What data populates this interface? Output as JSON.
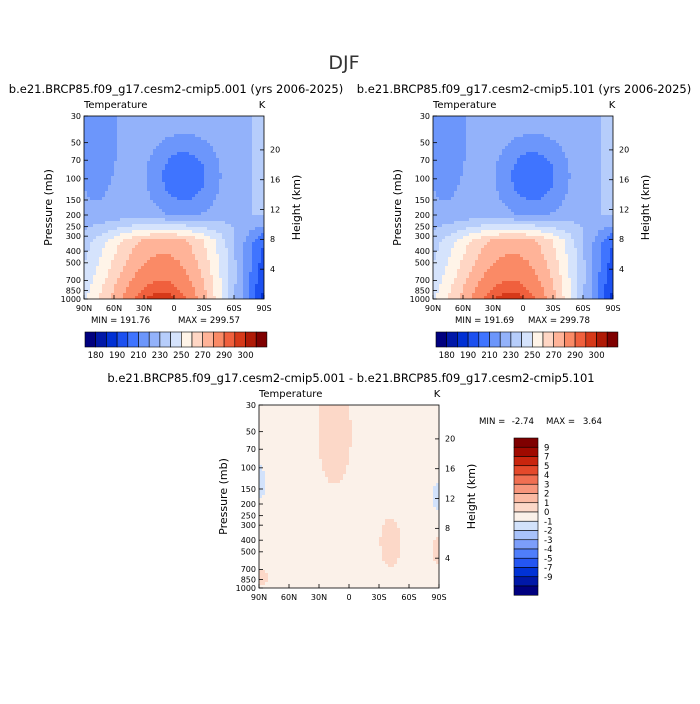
{
  "season": "DJF",
  "colors": {
    "abs": [
      "#00007f",
      "#0018a8",
      "#0030d4",
      "#1c50f0",
      "#3f74ff",
      "#6c96fb",
      "#93b2fa",
      "#b6cdfb",
      "#d5e3fc",
      "#fff4e8",
      "#ffd6c4",
      "#ffb398",
      "#fa8a66",
      "#f0603d",
      "#d63919",
      "#b01a06",
      "#7f0000"
    ],
    "diff": [
      "#00007f",
      "#0018a8",
      "#0032d6",
      "#2456f2",
      "#4f7efb",
      "#7c9efa",
      "#a8c2fa",
      "#d2e2fb",
      "#fbf1e9",
      "#fcd8c8",
      "#fbbaa3",
      "#f7967c",
      "#f06f52",
      "#e4492b",
      "#c9250e",
      "#a00a00",
      "#7f0000"
    ]
  },
  "chart_data": [
    {
      "type": "contour",
      "case_title": "b.e21.BRCP85.f09_g17.cesm2-cmip5.001 (yrs 2006-2025)",
      "variable": "Temperature",
      "units": "K",
      "ylabel": "Pressure (mb)",
      "ylabel_right": "Height (km)",
      "pressure_ticks": [
        "30",
        "50",
        "70",
        "100",
        "150",
        "200",
        "250",
        "300",
        "400",
        "500",
        "700",
        "850",
        "1000"
      ],
      "height_ticks": [
        "20",
        "16",
        "12",
        "8",
        "4"
      ],
      "lat_ticks": [
        "90N",
        "60N",
        "30N",
        "0",
        "30S",
        "60S",
        "90S"
      ],
      "min_label": "MIN = 191.76",
      "max_label": "MAX = 299.57",
      "min": 191.76,
      "max": 299.57,
      "colorbar_labels": [
        "180",
        "190",
        "210",
        "230",
        "250",
        "270",
        "290",
        "300"
      ]
    },
    {
      "type": "contour",
      "case_title": "b.e21.BRCP85.f09_g17.cesm2-cmip5.101 (yrs 2006-2025)",
      "variable": "Temperature",
      "units": "K",
      "ylabel": "Pressure (mb)",
      "ylabel_right": "Height (km)",
      "pressure_ticks": [
        "30",
        "50",
        "70",
        "100",
        "150",
        "200",
        "250",
        "300",
        "400",
        "500",
        "700",
        "850",
        "1000"
      ],
      "height_ticks": [
        "20",
        "16",
        "12",
        "8",
        "4"
      ],
      "lat_ticks": [
        "90N",
        "60N",
        "30N",
        "0",
        "30S",
        "60S",
        "90S"
      ],
      "min_label": "MIN = 191.69",
      "max_label": "MAX = 299.78",
      "min": 191.69,
      "max": 299.78,
      "colorbar_labels": [
        "180",
        "190",
        "210",
        "230",
        "250",
        "270",
        "290",
        "300"
      ]
    },
    {
      "type": "contour",
      "case_title": "b.e21.BRCP85.f09_g17.cesm2-cmip5.001 - b.e21.BRCP85.f09_g17.cesm2-cmip5.101",
      "variable": "Temperature",
      "units": "K",
      "ylabel": "Pressure (mb)",
      "ylabel_right": "Height (km)",
      "pressure_ticks": [
        "30",
        "50",
        "70",
        "100",
        "150",
        "200",
        "250",
        "300",
        "400",
        "500",
        "700",
        "850",
        "1000"
      ],
      "height_ticks": [
        "20",
        "16",
        "12",
        "8",
        "4"
      ],
      "lat_ticks": [
        "90N",
        "60N",
        "30N",
        "0",
        "30S",
        "60S",
        "90S"
      ],
      "min_label": "MIN =",
      "min_value": "-2.74",
      "max_label": "MAX =",
      "max_value": "3.64",
      "min": -2.74,
      "max": 3.64,
      "colorbar_labels": [
        "9",
        "7",
        "5",
        "4",
        "3",
        "2",
        "1",
        "0",
        "-1",
        "-2",
        "-3",
        "-4",
        "-5",
        "-7",
        "-9"
      ]
    }
  ]
}
